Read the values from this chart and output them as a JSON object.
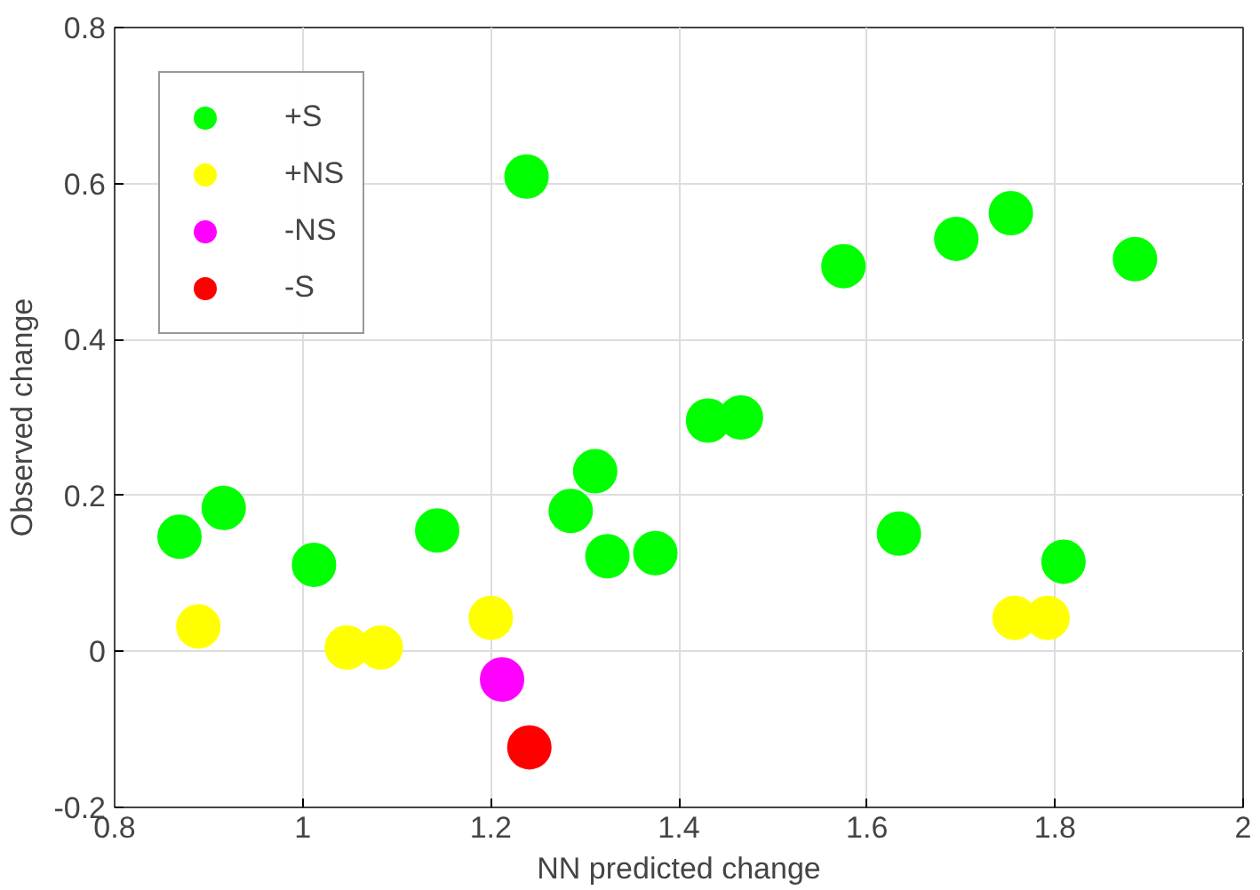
{
  "chart_data": {
    "type": "scatter",
    "xlabel": "NN predicted change",
    "ylabel": "Observed change",
    "xlim": [
      0.8,
      2
    ],
    "ylim": [
      -0.2,
      0.8
    ],
    "xticks": [
      0.8,
      1,
      1.2,
      1.4,
      1.6,
      1.8,
      2
    ],
    "yticks": [
      -0.2,
      0,
      0.2,
      0.4,
      0.6,
      0.8
    ],
    "grid": true,
    "legend": "top left",
    "marker": "circle",
    "series": [
      {
        "name": "+S",
        "color": "#00ff00",
        "x": [
          0.869,
          0.916,
          1.012,
          1.143,
          1.238,
          1.285,
          1.311,
          1.324,
          1.375,
          1.431,
          1.466,
          1.575,
          1.634,
          1.695,
          1.753,
          1.809,
          1.885
        ],
        "values": [
          0.147,
          0.184,
          0.111,
          0.155,
          0.609,
          0.18,
          0.231,
          0.122,
          0.126,
          0.296,
          0.3,
          0.494,
          0.151,
          0.529,
          0.562,
          0.115,
          0.503
        ]
      },
      {
        "name": "+NS",
        "color": "#ffff00",
        "x": [
          0.889,
          1.047,
          1.083,
          1.2,
          1.757,
          1.792
        ],
        "values": [
          0.032,
          0.005,
          0.005,
          0.043,
          0.043,
          0.043
        ]
      },
      {
        "name": "-NS",
        "color": "#ff00ff",
        "x": [
          1.212
        ],
        "values": [
          -0.036
        ]
      },
      {
        "name": "-S",
        "color": "#ff0000",
        "x": [
          1.241
        ],
        "values": [
          -0.123
        ]
      }
    ]
  }
}
